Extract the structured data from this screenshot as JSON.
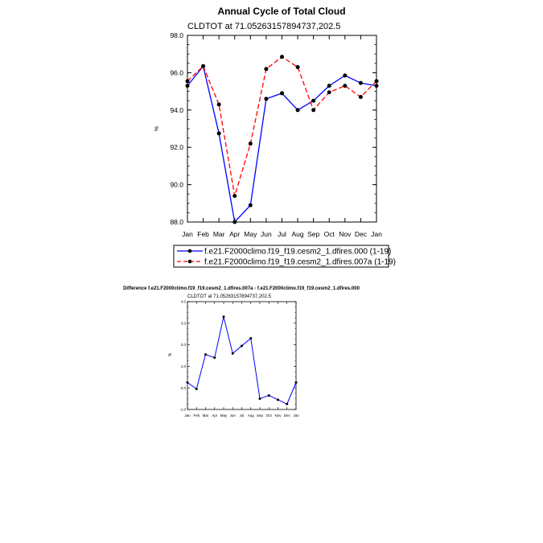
{
  "chart_data": [
    {
      "type": "line",
      "title": "Annual Cycle of Total Cloud",
      "subtitle": "CLDTOT at 71.05263157894737,202.5",
      "ylabel": "%",
      "ylim": [
        88.0,
        98.0
      ],
      "yticks": [
        "98.0",
        "96.0",
        "94.0",
        "92.0",
        "90.0",
        "88.0"
      ],
      "categories": [
        "Jan",
        "Feb",
        "Mar",
        "Apr",
        "May",
        "Jun",
        "Jul",
        "Aug",
        "Sep",
        "Oct",
        "Nov",
        "Dec",
        "Jan"
      ],
      "series": [
        {
          "name": "f.e21.F2000climo.f19_f19.cesm2_1.dfires.000 (1-19)",
          "color": "#0000ff",
          "dashed": false,
          "values": [
            95.3,
            96.35,
            92.75,
            88.0,
            88.9,
            94.6,
            94.9,
            94.0,
            94.5,
            95.3,
            95.85,
            95.45,
            95.3
          ]
        },
        {
          "name": "f.e21.F2000climo.f19_f19.cesm2_1.dfires.007a (1-19)",
          "color": "#ff0000",
          "dashed": true,
          "values": [
            95.55,
            96.35,
            94.3,
            89.4,
            92.2,
            96.2,
            96.85,
            96.3,
            94.0,
            94.95,
            95.3,
            94.7,
            95.55
          ]
        }
      ],
      "grid": false,
      "legend": "bottom"
    },
    {
      "type": "line",
      "title": "Difference f.e21.F2000climo.f19_f19.cesm2_1.dfires.007a - f.e21.F2000climo.f19_f19.cesm2_1.dfires.000",
      "subtitle": "CLDTOT at 71.05263157894737,202.5",
      "ylabel": "%",
      "ylim": [
        -1.0,
        4.0
      ],
      "yticks": [
        "4.0",
        "3.0",
        "2.0",
        "1.0",
        "0.0",
        "-1.0"
      ],
      "categories": [
        "Jan",
        "Feb",
        "Mar",
        "Apr",
        "May",
        "Jun",
        "Jul",
        "Aug",
        "Sep",
        "Oct",
        "Nov",
        "Dec",
        "Jan"
      ],
      "series": [
        {
          "color": "#0000ff",
          "values": [
            0.25,
            -0.05,
            1.55,
            1.4,
            3.3,
            1.6,
            1.95,
            2.3,
            -0.5,
            -0.35,
            -0.55,
            -0.75,
            0.25
          ]
        }
      ],
      "grid": false
    }
  ]
}
